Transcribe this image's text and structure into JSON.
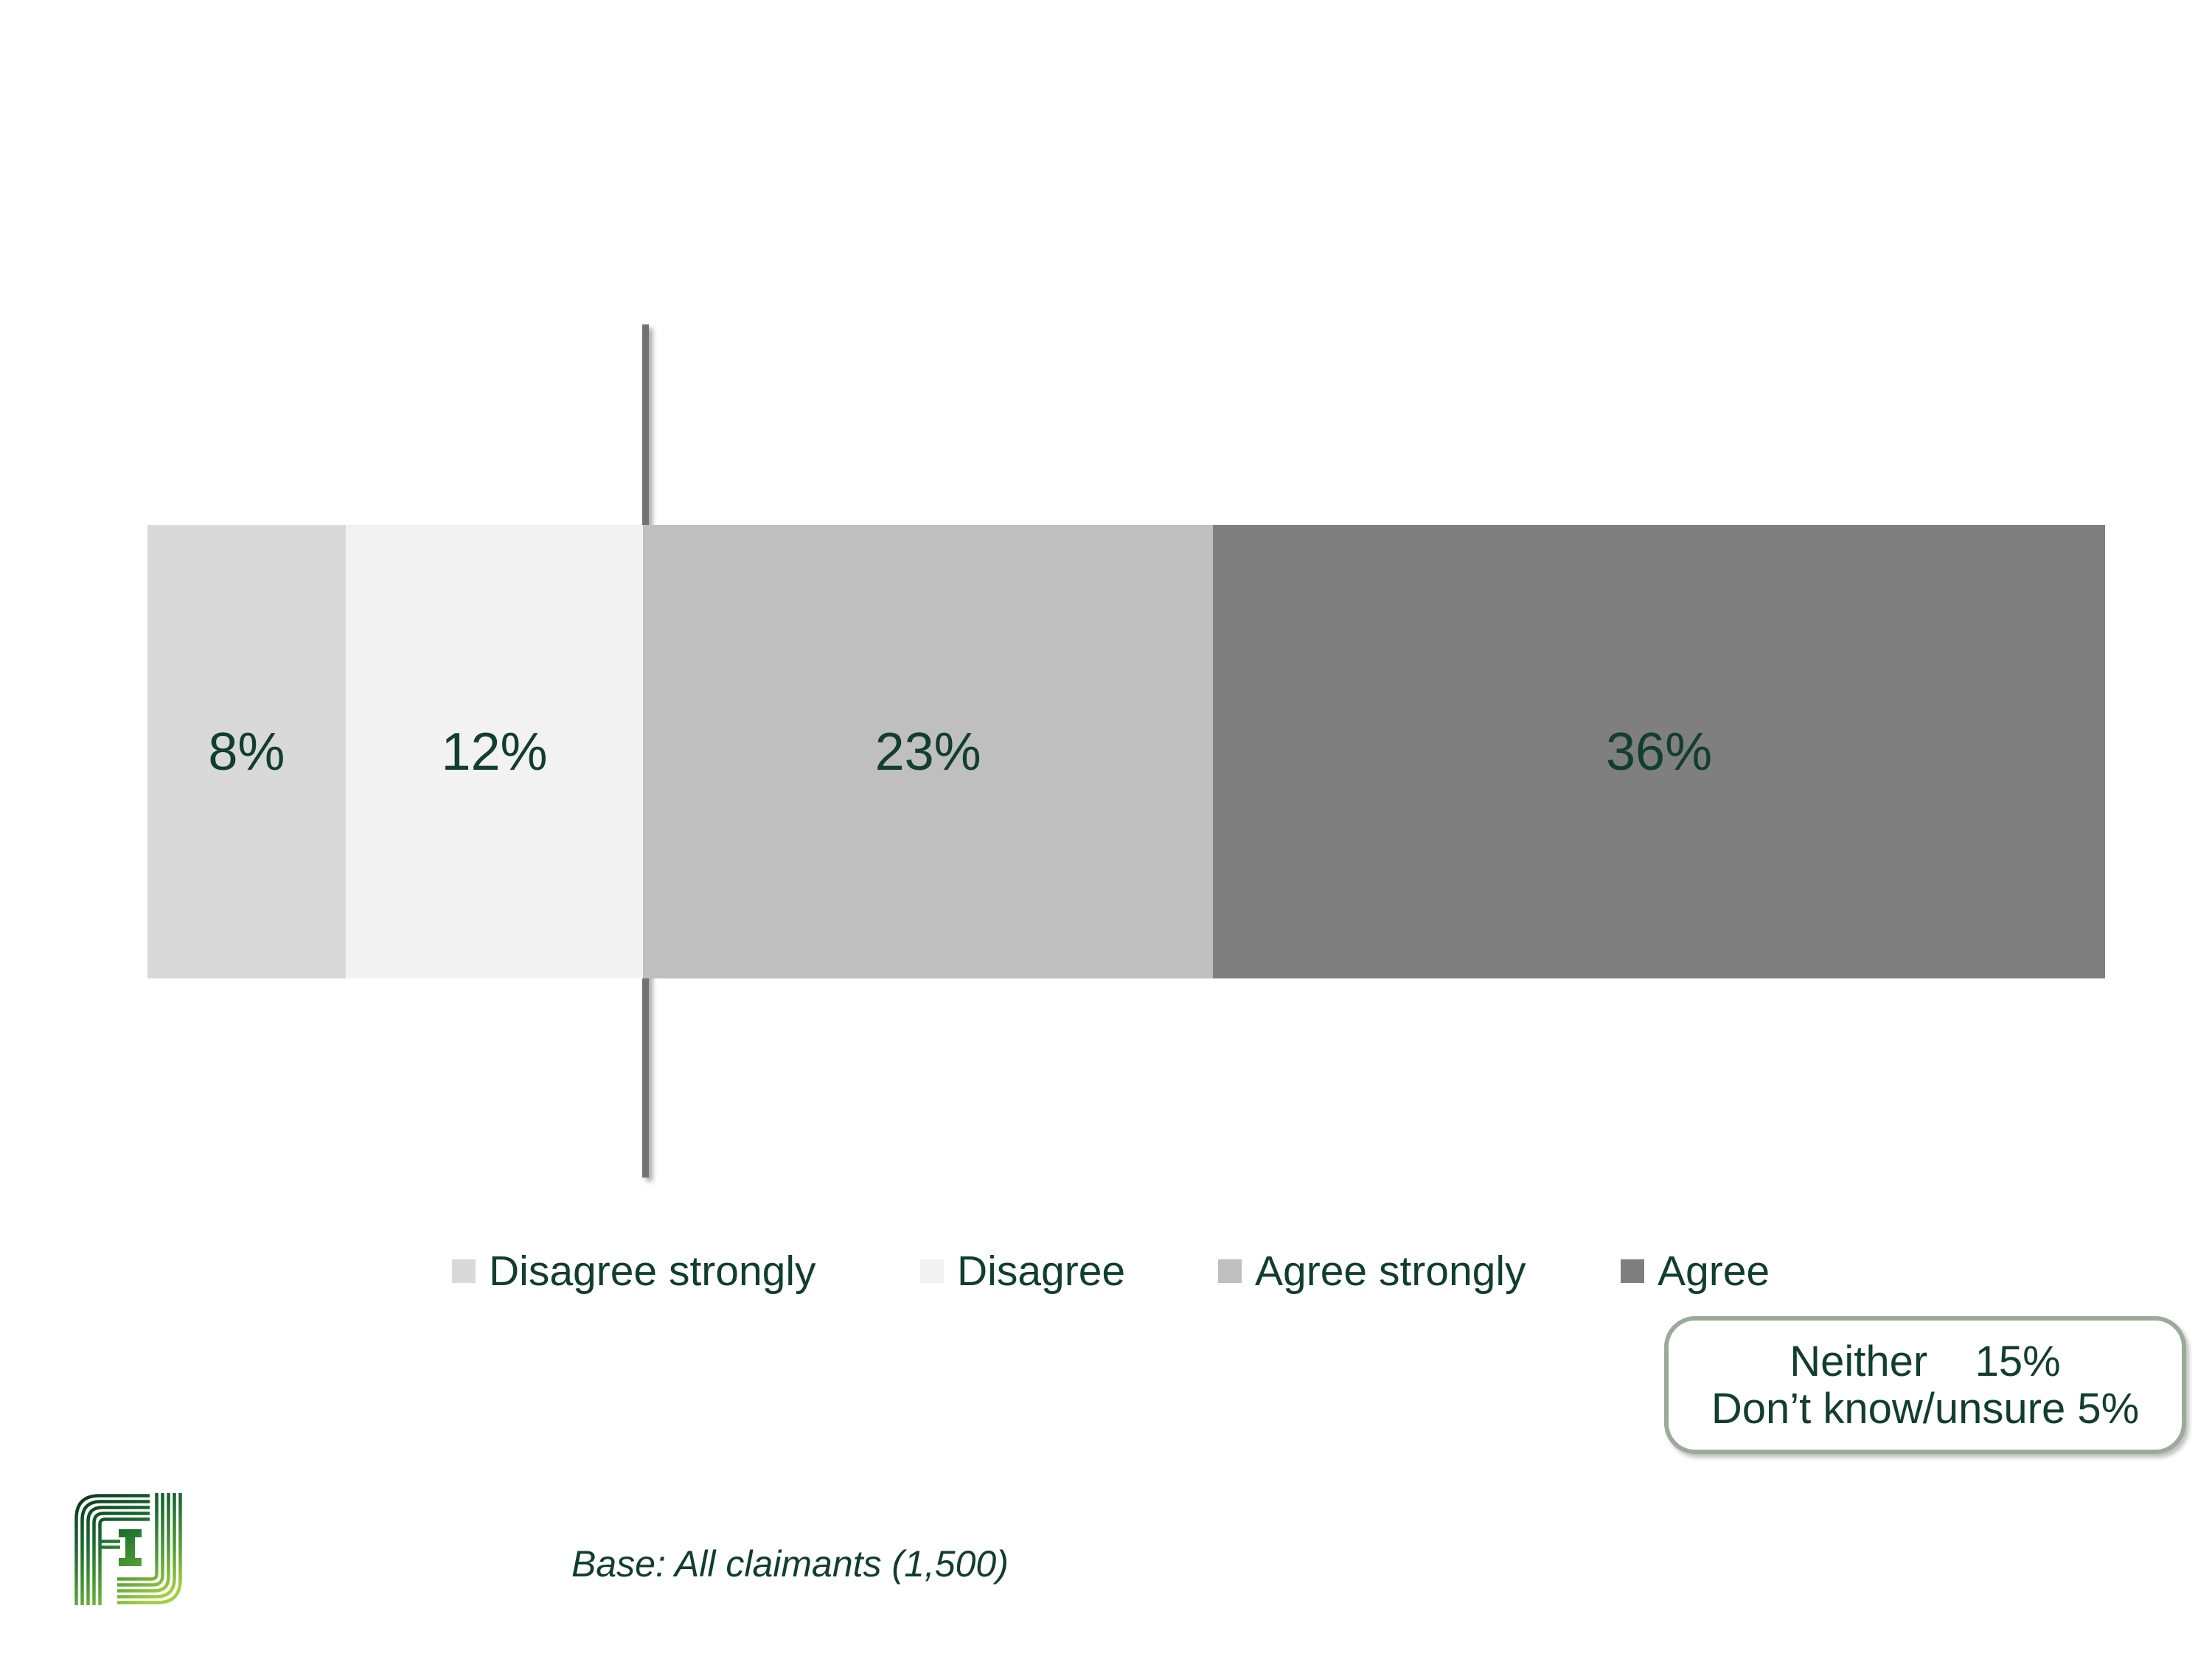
{
  "chart_data": {
    "type": "bar",
    "orientation": "horizontal_stacked",
    "title": "",
    "unit": "%",
    "categories": [
      "All claimants"
    ],
    "segments": [
      {
        "label": "Disagree strongly",
        "value": 8,
        "display": "8%",
        "color": "#d9d9d9"
      },
      {
        "label": "Disagree",
        "value": 12,
        "display": "12%",
        "color": "#f2f2f2"
      },
      {
        "label": "Agree strongly",
        "value": 23,
        "display": "23%",
        "color": "#bfbfbf"
      },
      {
        "label": "Agree",
        "value": 36,
        "display": "36%",
        "color": "#7f7f7f"
      }
    ],
    "axis_total_percent": 79,
    "reference_line": {
      "at_cumulative_percent": 20,
      "color": "#737373"
    },
    "legend_position": "bottom",
    "not_shown_in_bar": [
      {
        "label": "Neither",
        "display": "15%"
      },
      {
        "label": "Don’t know/unsure",
        "display": "5%"
      }
    ]
  },
  "callout": {
    "line1": "Neither    15%",
    "line2": "Don’t know/unsure 5%"
  },
  "base_note": "Base: All claimants (1,500)",
  "colors": {
    "text_green": "#113E2D",
    "callout_border": "#9CAA9C",
    "reference_line": "#737373"
  },
  "logo": {
    "name": "green-striped-monogram",
    "gradient": [
      "#0B3A1F",
      "#17682E",
      "#4F9E35",
      "#A3CF3E"
    ]
  }
}
